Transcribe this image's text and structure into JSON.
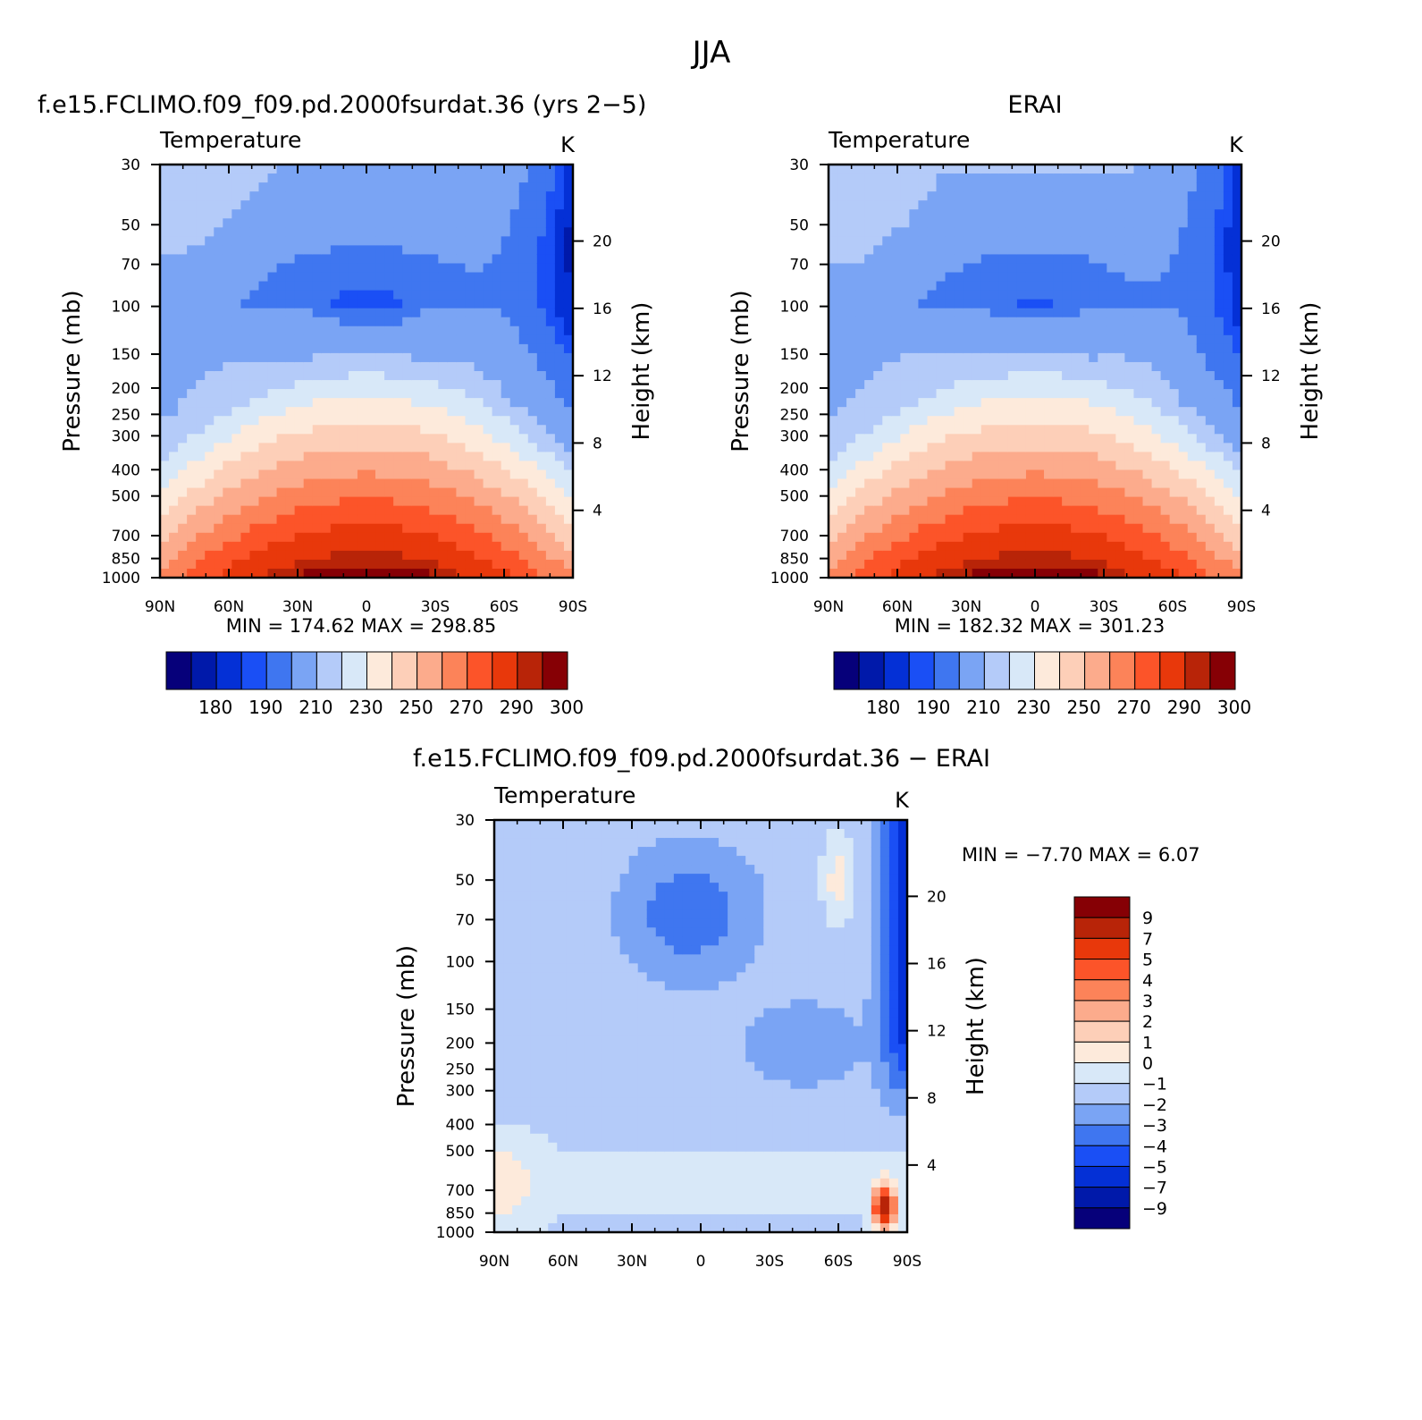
{
  "figure_title": "JJA",
  "colors": {
    "sequential_palette": [
      "#06007a",
      "#0019aa",
      "#0430d6",
      "#1a4ff5",
      "#3f76f0",
      "#7aa4f4",
      "#b4cbf9",
      "#d8e8f8",
      "#fdeadb",
      "#fdcfb8",
      "#fcab8c",
      "#fc8359",
      "#fc5429",
      "#e8380b",
      "#b82408",
      "#860005"
    ],
    "difference_palette": [
      "#06007a",
      "#0019aa",
      "#0430d6",
      "#1a4ff5",
      "#3f76f0",
      "#7aa4f4",
      "#b4cbf9",
      "#d8e8f8",
      "#fdeadb",
      "#fdcfb8",
      "#fcab8c",
      "#fc8359",
      "#fc5429",
      "#e8380b",
      "#b82408",
      "#860005"
    ]
  },
  "chart_data": [
    {
      "type": "heatmap",
      "title": "f.e15.FCLIMO.f09_f09.pd.2000fsurdat.36 (yrs 2−5)",
      "left_title": "Temperature",
      "units": "K",
      "ylabel": "Pressure (mb)",
      "ylabel_right": "Height (km)",
      "x_ticks": [
        "90N",
        "60N",
        "30N",
        "0",
        "30S",
        "60S",
        "90S"
      ],
      "y_ticks": [
        "30",
        "50",
        "70",
        "100",
        "150",
        "200",
        "250",
        "300",
        "400",
        "500",
        "700",
        "850",
        "1000"
      ],
      "y_right_ticks": [
        "20",
        "16",
        "12",
        "8",
        "4"
      ],
      "ylim": [
        1000,
        30
      ],
      "stats": "MIN = 174.62   MAX = 298.85",
      "min": 174.62,
      "max": 298.85,
      "colorbar_labels": [
        "180",
        "190",
        "210",
        "230",
        "250",
        "270",
        "290",
        "300"
      ]
    },
    {
      "type": "heatmap",
      "title": "ERAI",
      "left_title": "Temperature",
      "units": "K",
      "ylabel": "Pressure (mb)",
      "ylabel_right": "Height (km)",
      "x_ticks": [
        "90N",
        "60N",
        "30N",
        "0",
        "30S",
        "60S",
        "90S"
      ],
      "y_ticks": [
        "30",
        "50",
        "70",
        "100",
        "150",
        "200",
        "250",
        "300",
        "400",
        "500",
        "700",
        "850",
        "1000"
      ],
      "y_right_ticks": [
        "20",
        "16",
        "12",
        "8",
        "4"
      ],
      "ylim": [
        1000,
        30
      ],
      "stats": "MIN = 182.32   MAX = 301.23",
      "min": 182.32,
      "max": 301.23,
      "colorbar_labels": [
        "180",
        "190",
        "210",
        "230",
        "250",
        "270",
        "290",
        "300"
      ]
    },
    {
      "type": "heatmap",
      "title": "f.e15.FCLIMO.f09_f09.pd.2000fsurdat.36 − ERAI",
      "left_title": "Temperature",
      "units": "K",
      "ylabel": "Pressure (mb)",
      "ylabel_right": "Height (km)",
      "x_ticks": [
        "90N",
        "60N",
        "30N",
        "0",
        "30S",
        "60S",
        "90S"
      ],
      "y_ticks": [
        "30",
        "50",
        "70",
        "100",
        "150",
        "200",
        "250",
        "300",
        "400",
        "500",
        "700",
        "850",
        "1000"
      ],
      "y_right_ticks": [
        "20",
        "16",
        "12",
        "8",
        "4"
      ],
      "ylim": [
        1000,
        30
      ],
      "stats": "MIN =   −7.70   MAX =    6.07",
      "min": -7.7,
      "max": 6.07,
      "colorbar_labels": [
        "9",
        "7",
        "5",
        "4",
        "3",
        "2",
        "1",
        "0",
        "−1",
        "−2",
        "−3",
        "−4",
        "−5",
        "−7",
        "−9"
      ]
    }
  ]
}
